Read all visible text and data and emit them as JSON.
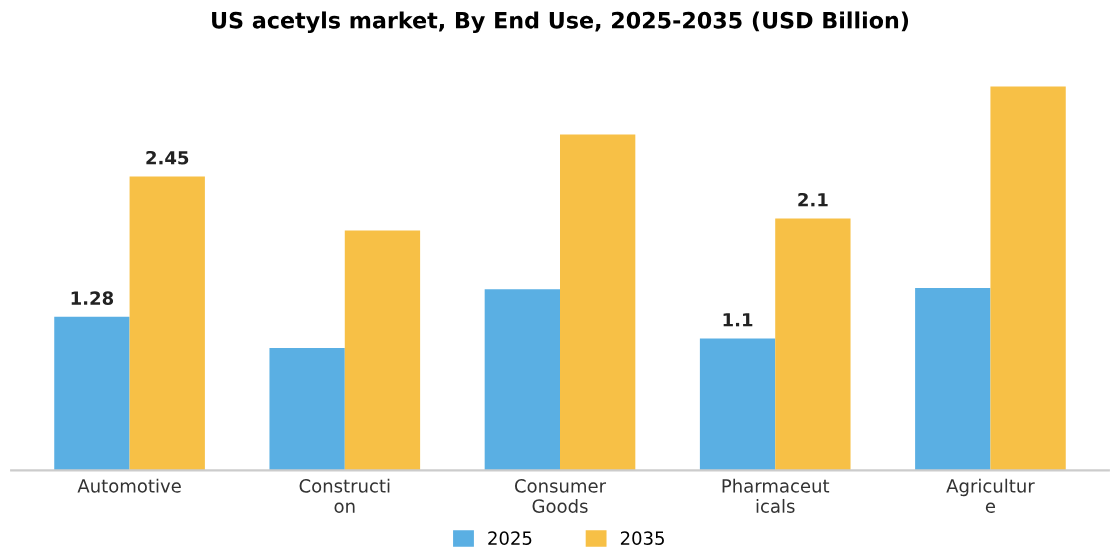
{
  "chart_data": {
    "type": "bar",
    "title": "US acetyls market, By End Use, 2025-2035 (USD Billion)",
    "categories": [
      "Automotive",
      "Constructi\non",
      "Consumer\nGoods",
      "Pharmaceut\nicals",
      "Agricultur\ne"
    ],
    "series": [
      {
        "name": "2025",
        "color": "#5aafe3",
        "values": [
          1.28,
          1.02,
          1.51,
          1.1,
          1.52
        ],
        "value_labels": [
          "1.28",
          null,
          null,
          "1.1",
          null
        ]
      },
      {
        "name": "2035",
        "color": "#f7c046",
        "values": [
          2.45,
          2.0,
          2.8,
          2.1,
          3.2
        ],
        "value_labels": [
          "2.45",
          null,
          null,
          "2.1",
          null
        ]
      }
    ],
    "legend": "bottom",
    "grid": false,
    "tick_labels": "x"
  }
}
